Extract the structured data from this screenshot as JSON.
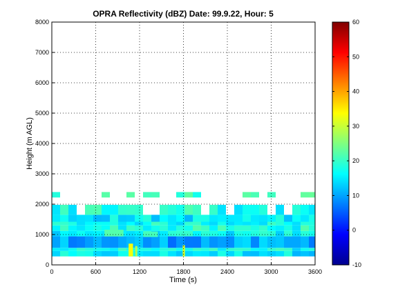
{
  "chart_data": {
    "type": "heatmap",
    "title": "OPRA Reflectivity (dBZ)  Date: 99.9.22, Hour: 5",
    "xlabel": "Time (s)",
    "ylabel": "Height (m AGL)",
    "xlim": [
      0,
      3600
    ],
    "ylim": [
      0,
      8000
    ],
    "x_ticks": [
      0,
      600,
      1200,
      1800,
      2400,
      3000,
      3600
    ],
    "y_ticks": [
      0,
      1000,
      2000,
      3000,
      4000,
      5000,
      6000,
      7000,
      8000
    ],
    "grid": true,
    "colorbar": {
      "range": [
        -10,
        60
      ],
      "ticks": [
        -10,
        0,
        10,
        20,
        30,
        40,
        50,
        60
      ],
      "colormap": "jet"
    },
    "bands": [
      {
        "y": [
          280,
          460
        ],
        "dbz": 15
      },
      {
        "y": [
          460,
          560
        ],
        "dbz": 17
      },
      {
        "y": [
          560,
          940
        ],
        "dbz": 10
      },
      {
        "y": [
          940,
          1120
        ],
        "dbz": 16
      },
      {
        "y": [
          1120,
          1300
        ],
        "dbz": 18
      },
      {
        "y": [
          1300,
          1420
        ],
        "dbz": 17
      },
      {
        "y": [
          1420,
          1650
        ],
        "dbz": 15
      },
      {
        "y": [
          1650,
          1980
        ],
        "dbz": 18
      },
      {
        "y": [
          2220,
          2400
        ],
        "dbz": 20
      }
    ],
    "cells": [
      {
        "x": [
          1050,
          1110
        ],
        "y": [
          280,
          700
        ],
        "dbz": 33
      },
      {
        "x": [
          1140,
          1170
        ],
        "y": [
          280,
          620
        ],
        "dbz": 28
      },
      {
        "x": [
          1790,
          1820
        ],
        "y": [
          280,
          650
        ],
        "dbz": 31
      },
      {
        "x": [
          720,
          980
        ],
        "y": [
          940,
          1160
        ],
        "dbz": 22
      },
      {
        "x": [
          1250,
          1450
        ],
        "y": [
          920,
          1100
        ],
        "dbz": 21
      }
    ]
  }
}
